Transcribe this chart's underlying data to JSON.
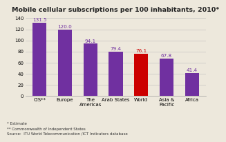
{
  "title": "Mobile cellular subscriptions per 100 inhabitants, 2010*",
  "categories": [
    "CIS**",
    "Europe",
    "The\nAmericas",
    "Arab States",
    "World",
    "Asia &\nPacific",
    "Africa"
  ],
  "values": [
    131.5,
    120.0,
    94.1,
    79.4,
    76.1,
    67.8,
    41.4
  ],
  "bar_colors": [
    "#7030a0",
    "#7030a0",
    "#7030a0",
    "#7030a0",
    "#cc0000",
    "#7030a0",
    "#7030a0"
  ],
  "ylim": [
    0,
    145
  ],
  "yticks": [
    0,
    20,
    40,
    60,
    80,
    100,
    120,
    140
  ],
  "footnote1": "* Estimate",
  "footnote2": "** Commonwealth of Independent States",
  "footnote3": "Source:  ITU World Telecommunication /ICT Indicators database",
  "value_color": "#7030a0",
  "value_color_red": "#cc0000",
  "bg_color": "#ede8dc",
  "title_fontsize": 6.8,
  "label_fontsize": 5.0,
  "value_fontsize": 5.2,
  "footnote_fontsize": 4.0
}
